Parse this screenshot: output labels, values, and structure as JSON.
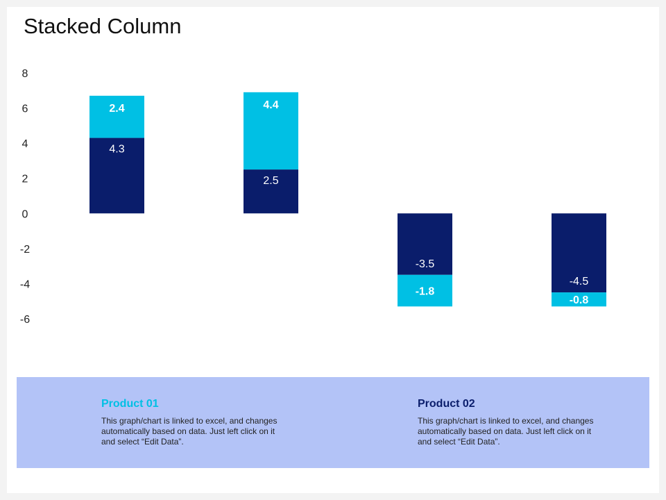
{
  "title": "Stacked Column",
  "colors": {
    "product_01": "#00c0e4",
    "product_02": "#0a1d6b",
    "panel": "#b3c3f7"
  },
  "chart_data": {
    "type": "bar",
    "stacked": true,
    "categories": [
      "",
      "",
      "",
      ""
    ],
    "series": [
      {
        "name": "Product 02",
        "values": [
          4.3,
          2.5,
          -3.5,
          -4.5
        ],
        "color": "#0a1d6b"
      },
      {
        "name": "Product 01",
        "values": [
          2.4,
          4.4,
          -1.8,
          -0.8
        ],
        "color": "#00c0e4"
      }
    ],
    "ylim": [
      -6,
      8
    ],
    "yticks": [
      "8",
      "6",
      "4",
      "2",
      "0",
      "-2",
      "-4",
      "-6"
    ],
    "ytick_values": [
      8,
      6,
      4,
      2,
      0,
      -2,
      -4,
      -6
    ],
    "data_labels": true,
    "grid": false,
    "legend": "bottom"
  },
  "legend": [
    {
      "name": "Product 01",
      "description": "This graph/chart is linked to excel, and changes automatically based on data. Just left click on it and select “Edit Data”."
    },
    {
      "name": "Product 02",
      "description": "This graph/chart is linked to excel, and changes automatically based on data. Just left click on it and select “Edit Data”."
    }
  ]
}
